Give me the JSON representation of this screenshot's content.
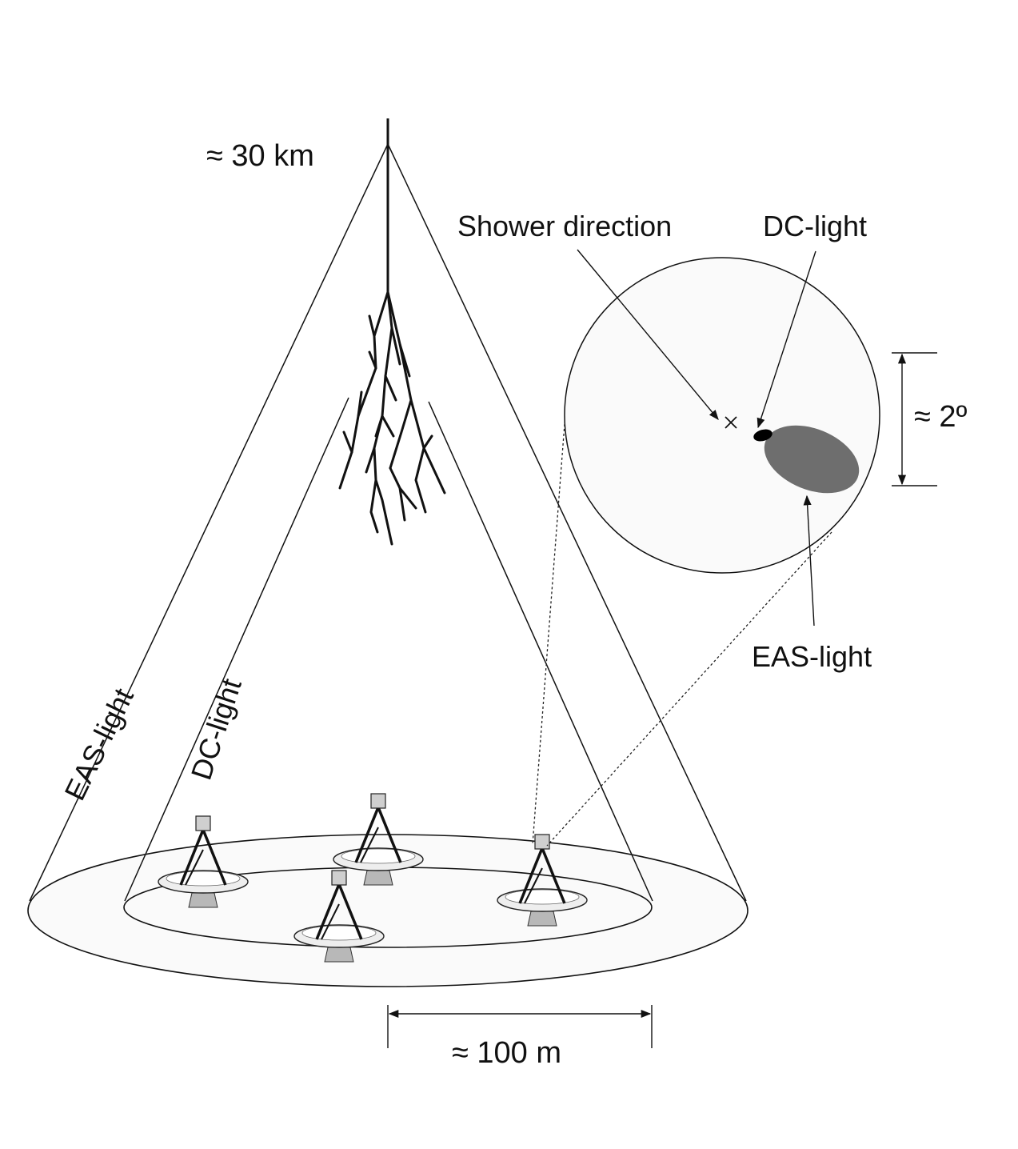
{
  "labels": {
    "altitude": "≈ 30 km",
    "shower_direction": "Shower direction",
    "dc_light_top": "DC-light",
    "angle": "≈ 2º",
    "eas_light_right": "EAS-light",
    "eas_light_cone": "EAS-light",
    "dc_light_cone": "DC-light",
    "distance": "≈ 100 m"
  },
  "colors": {
    "line": "#111111",
    "pool_fill": "#fafafa",
    "eas_spot": "#6e6e6e",
    "dc_spot": "#000000",
    "telescope_base": "#b8b8b8"
  }
}
